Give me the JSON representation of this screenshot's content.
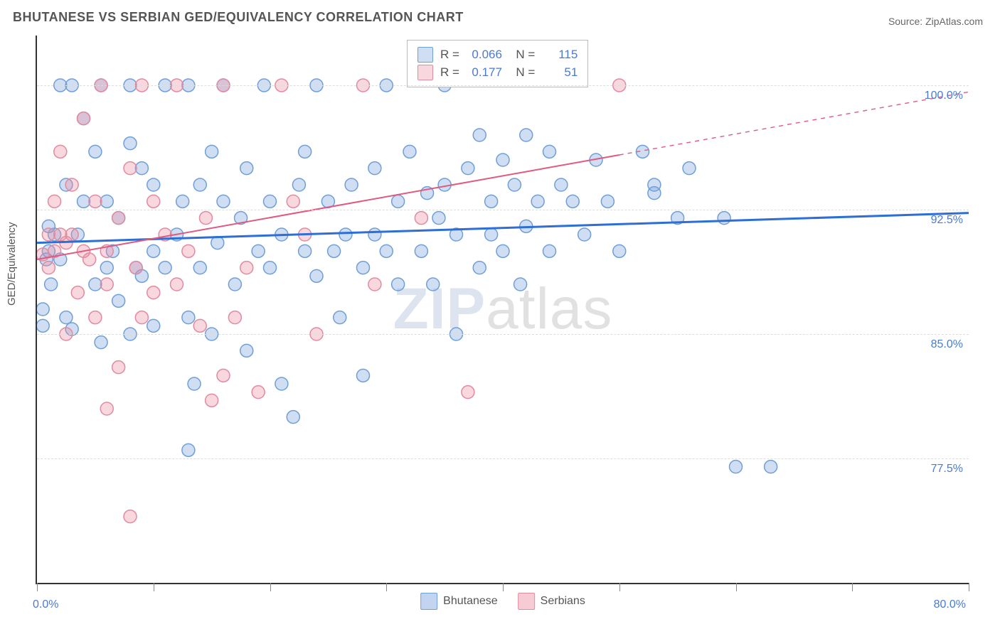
{
  "title": "BHUTANESE VS SERBIAN GED/EQUIVALENCY CORRELATION CHART",
  "source": "Source: ZipAtlas.com",
  "ylabel": "GED/Equivalency",
  "watermark": {
    "part1": "ZIP",
    "part2": "atlas"
  },
  "chart": {
    "type": "scatter",
    "xlim": [
      0,
      80
    ],
    "ylim": [
      70,
      103
    ],
    "xtick_positions": [
      0,
      10,
      20,
      30,
      40,
      50,
      60,
      70,
      80
    ],
    "xtick_labels": {
      "0": "0.0%",
      "80": "80.0%"
    },
    "ytick_positions": [
      77.5,
      85.0,
      92.5,
      100.0
    ],
    "ytick_labels": [
      "77.5%",
      "85.0%",
      "92.5%",
      "100.0%"
    ],
    "background_color": "#ffffff",
    "grid_color": "#dddddd",
    "marker_radius": 9,
    "marker_stroke_width": 1.5,
    "series": [
      {
        "name": "Bhutanese",
        "fill": "rgba(120,160,220,0.35)",
        "stroke": "#6f9fd8",
        "R": "0.066",
        "N": "115",
        "regression": {
          "x1": 0,
          "y1": 90.5,
          "x2": 80,
          "y2": 92.3,
          "color": "#2e6fd6",
          "width": 3
        },
        "points": [
          [
            1,
            90
          ],
          [
            1.5,
            91
          ],
          [
            2,
            100
          ],
          [
            2,
            89.5
          ],
          [
            2.5,
            94
          ],
          [
            2.5,
            86
          ],
          [
            3,
            85.3
          ],
          [
            3,
            100
          ],
          [
            3.5,
            91
          ],
          [
            4,
            93
          ],
          [
            4,
            98
          ],
          [
            5,
            96
          ],
          [
            5,
            88
          ],
          [
            5.5,
            100
          ],
          [
            5.5,
            84.5
          ],
          [
            6,
            93
          ],
          [
            6,
            89
          ],
          [
            6.5,
            90
          ],
          [
            7,
            92
          ],
          [
            7,
            87
          ],
          [
            8,
            96.5
          ],
          [
            8,
            100
          ],
          [
            8,
            85
          ],
          [
            8.5,
            89
          ],
          [
            9,
            95
          ],
          [
            9,
            88.5
          ],
          [
            10,
            90
          ],
          [
            10,
            85.5
          ],
          [
            10,
            94
          ],
          [
            11,
            100
          ],
          [
            11,
            89
          ],
          [
            12,
            91
          ],
          [
            12.5,
            93
          ],
          [
            13,
            86
          ],
          [
            13,
            100
          ],
          [
            13.5,
            82
          ],
          [
            14,
            94
          ],
          [
            14,
            89
          ],
          [
            15,
            96
          ],
          [
            15,
            85
          ],
          [
            15.5,
            90.5
          ],
          [
            16,
            93
          ],
          [
            16,
            100
          ],
          [
            17,
            88
          ],
          [
            17.5,
            92
          ],
          [
            18,
            95
          ],
          [
            18,
            84
          ],
          [
            19,
            90
          ],
          [
            19.5,
            100
          ],
          [
            20,
            89
          ],
          [
            20,
            93
          ],
          [
            21,
            91
          ],
          [
            21,
            82
          ],
          [
            22,
            80
          ],
          [
            22.5,
            94
          ],
          [
            23,
            90
          ],
          [
            23,
            96
          ],
          [
            24,
            88.5
          ],
          [
            24,
            100
          ],
          [
            25,
            93
          ],
          [
            25.5,
            90
          ],
          [
            26,
            86
          ],
          [
            26.5,
            91
          ],
          [
            27,
            94
          ],
          [
            28,
            89
          ],
          [
            28,
            82.5
          ],
          [
            29,
            95
          ],
          [
            29,
            91
          ],
          [
            30,
            100
          ],
          [
            30,
            90
          ],
          [
            31,
            93
          ],
          [
            31,
            88
          ],
          [
            32,
            96
          ],
          [
            33,
            90
          ],
          [
            33.5,
            93.5
          ],
          [
            34,
            88
          ],
          [
            34.5,
            92
          ],
          [
            35,
            100
          ],
          [
            35,
            94
          ],
          [
            36,
            85
          ],
          [
            36,
            91
          ],
          [
            37,
            95
          ],
          [
            38,
            89
          ],
          [
            38,
            97
          ],
          [
            39,
            93
          ],
          [
            39,
            91
          ],
          [
            40,
            90
          ],
          [
            40,
            95.5
          ],
          [
            41,
            94
          ],
          [
            41.5,
            88
          ],
          [
            42,
            97
          ],
          [
            42,
            91.5
          ],
          [
            43,
            93
          ],
          [
            44,
            96
          ],
          [
            44,
            90
          ],
          [
            45,
            94
          ],
          [
            46,
            93
          ],
          [
            47,
            91
          ],
          [
            48,
            95.5
          ],
          [
            49,
            93
          ],
          [
            50,
            90
          ],
          [
            52,
            96
          ],
          [
            53,
            94
          ],
          [
            55,
            92
          ],
          [
            56,
            95
          ],
          [
            59,
            92
          ],
          [
            60,
            77
          ],
          [
            63,
            77
          ],
          [
            0.5,
            85.5
          ],
          [
            0.5,
            86.5
          ],
          [
            13,
            78
          ],
          [
            1,
            91.5
          ],
          [
            0.8,
            89.5
          ],
          [
            1.2,
            88
          ],
          [
            53,
            93.5
          ]
        ]
      },
      {
        "name": "Serbians",
        "fill": "rgba(235,140,160,0.35)",
        "stroke": "#e28aa0",
        "R": "0.177",
        "N": "51",
        "regression": {
          "x1": 0,
          "y1": 89.5,
          "x2": 50,
          "y2": 95.8,
          "x2_dash": 80,
          "y2_dash": 99.6,
          "color": "#e05a80",
          "width": 2
        },
        "points": [
          [
            1,
            89
          ],
          [
            1,
            91
          ],
          [
            1.5,
            90
          ],
          [
            1.5,
            93
          ],
          [
            2,
            91
          ],
          [
            2,
            96
          ],
          [
            2.5,
            90.5
          ],
          [
            2.5,
            85
          ],
          [
            3,
            91
          ],
          [
            3,
            94
          ],
          [
            3.5,
            87.5
          ],
          [
            4,
            98
          ],
          [
            4,
            90
          ],
          [
            4.5,
            89.5
          ],
          [
            5,
            93
          ],
          [
            5,
            86
          ],
          [
            5.5,
            100
          ],
          [
            6,
            90
          ],
          [
            6,
            88
          ],
          [
            7,
            83
          ],
          [
            7,
            92
          ],
          [
            8,
            95
          ],
          [
            8.5,
            89
          ],
          [
            9,
            86
          ],
          [
            9,
            100
          ],
          [
            10,
            93
          ],
          [
            10,
            87.5
          ],
          [
            11,
            91
          ],
          [
            12,
            88
          ],
          [
            12,
            100
          ],
          [
            13,
            90
          ],
          [
            14,
            85.5
          ],
          [
            14.5,
            92
          ],
          [
            15,
            81
          ],
          [
            16,
            82.5
          ],
          [
            16,
            100
          ],
          [
            17,
            86
          ],
          [
            18,
            89
          ],
          [
            19,
            81.5
          ],
          [
            21,
            100
          ],
          [
            22,
            93
          ],
          [
            23,
            91
          ],
          [
            24,
            85
          ],
          [
            28,
            100
          ],
          [
            29,
            88
          ],
          [
            33,
            92
          ],
          [
            37,
            81.5
          ],
          [
            50,
            100
          ],
          [
            8,
            74
          ],
          [
            6,
            80.5
          ],
          [
            0.5,
            89.8
          ]
        ]
      }
    ]
  },
  "bottom_legend": [
    {
      "label": "Bhutanese",
      "fill": "rgba(120,160,220,0.45)",
      "stroke": "#6f9fd8"
    },
    {
      "label": "Serbians",
      "fill": "rgba(235,140,160,0.45)",
      "stroke": "#e28aa0"
    }
  ]
}
